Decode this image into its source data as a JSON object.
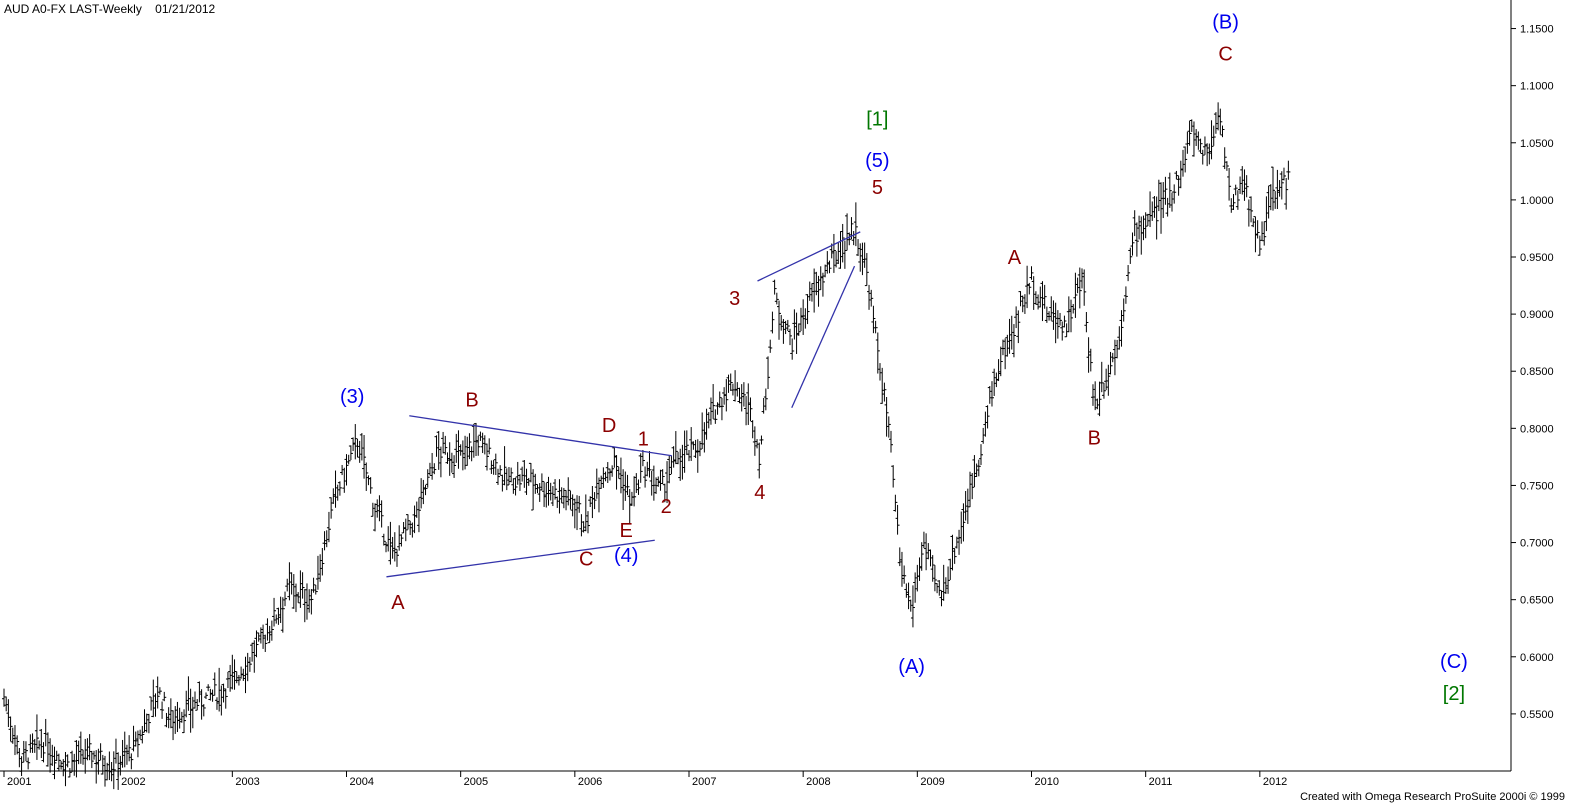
{
  "header": {
    "symbol": "AUD A0-FX LAST-Weekly",
    "date": "01/21/2012"
  },
  "footer": {
    "credit": "Created with Omega Research ProSuite 2000i © 1999"
  },
  "colors": {
    "bars": "#000000",
    "trendlines": "#3333aa",
    "wave_blue": "#0000ee",
    "wave_red": "#8b0000",
    "wave_green": "#007700",
    "axis": "#000000"
  },
  "chart_data": {
    "type": "ohlc",
    "title": "",
    "xlabel": "",
    "ylabel": "",
    "ylim": [
      0.5,
      1.175
    ],
    "xlim": [
      2001.0,
      2014.2
    ],
    "y_ticks": [
      "1.1500",
      "1.1000",
      "1.0500",
      "1.0000",
      "0.9500",
      "0.9000",
      "0.8500",
      "0.8000",
      "0.7500",
      "0.7000",
      "0.6500",
      "0.6000",
      "0.5500"
    ],
    "x_ticks": [
      "2001",
      "2002",
      "2003",
      "2004",
      "2005",
      "2006",
      "2007",
      "2008",
      "2009",
      "2010",
      "2011",
      "2012"
    ],
    "price_path": [
      [
        2001.0,
        0.565
      ],
      [
        2001.15,
        0.51
      ],
      [
        2001.35,
        0.525
      ],
      [
        2001.55,
        0.505
      ],
      [
        2001.75,
        0.515
      ],
      [
        2001.95,
        0.505
      ],
      [
        2002.15,
        0.52
      ],
      [
        2002.35,
        0.57
      ],
      [
        2002.45,
        0.545
      ],
      [
        2002.7,
        0.56
      ],
      [
        2002.9,
        0.57
      ],
      [
        2003.1,
        0.59
      ],
      [
        2003.3,
        0.62
      ],
      [
        2003.5,
        0.66
      ],
      [
        2003.7,
        0.65
      ],
      [
        2003.9,
        0.74
      ],
      [
        2004.1,
        0.79
      ],
      [
        2004.25,
        0.73
      ],
      [
        2004.4,
        0.69
      ],
      [
        2004.6,
        0.72
      ],
      [
        2004.8,
        0.78
      ],
      [
        2005.0,
        0.775
      ],
      [
        2005.15,
        0.79
      ],
      [
        2005.4,
        0.755
      ],
      [
        2005.6,
        0.755
      ],
      [
        2005.8,
        0.745
      ],
      [
        2006.0,
        0.735
      ],
      [
        2006.1,
        0.715
      ],
      [
        2006.2,
        0.755
      ],
      [
        2006.35,
        0.77
      ],
      [
        2006.5,
        0.735
      ],
      [
        2006.6,
        0.765
      ],
      [
        2006.75,
        0.745
      ],
      [
        2006.9,
        0.775
      ],
      [
        2007.05,
        0.78
      ],
      [
        2007.3,
        0.83
      ],
      [
        2007.4,
        0.84
      ],
      [
        2007.55,
        0.81
      ],
      [
        2007.62,
        0.775
      ],
      [
        2007.75,
        0.915
      ],
      [
        2007.9,
        0.875
      ],
      [
        2008.1,
        0.92
      ],
      [
        2008.3,
        0.955
      ],
      [
        2008.45,
        0.975
      ],
      [
        2008.55,
        0.94
      ],
      [
        2008.75,
        0.8
      ],
      [
        2008.85,
        0.68
      ],
      [
        2008.95,
        0.64
      ],
      [
        2009.05,
        0.7
      ],
      [
        2009.2,
        0.65
      ],
      [
        2009.4,
        0.72
      ],
      [
        2009.55,
        0.78
      ],
      [
        2009.7,
        0.85
      ],
      [
        2009.85,
        0.89
      ],
      [
        2010.0,
        0.93
      ],
      [
        2010.15,
        0.9
      ],
      [
        2010.3,
        0.89
      ],
      [
        2010.45,
        0.93
      ],
      [
        2010.55,
        0.82
      ],
      [
        2010.75,
        0.87
      ],
      [
        2010.9,
        0.97
      ],
      [
        2011.1,
        0.99
      ],
      [
        2011.3,
        1.02
      ],
      [
        2011.4,
        1.06
      ],
      [
        2011.55,
        1.04
      ],
      [
        2011.65,
        1.08
      ],
      [
        2011.75,
        0.99
      ],
      [
        2011.85,
        1.02
      ],
      [
        2012.0,
        0.96
      ],
      [
        2012.1,
        1.0
      ],
      [
        2012.25,
        1.02
      ]
    ],
    "annotations": [
      {
        "text": "(3)",
        "x": 2004.05,
        "y": 0.822,
        "color": "blue"
      },
      {
        "text": "B",
        "x": 2005.1,
        "y": 0.819,
        "color": "red"
      },
      {
        "text": "D",
        "x": 2006.3,
        "y": 0.797,
        "color": "red"
      },
      {
        "text": "1",
        "x": 2006.6,
        "y": 0.785,
        "color": "red"
      },
      {
        "text": "2",
        "x": 2006.8,
        "y": 0.726,
        "color": "red"
      },
      {
        "text": "E",
        "x": 2006.45,
        "y": 0.705,
        "color": "red"
      },
      {
        "text": "C",
        "x": 2006.1,
        "y": 0.68,
        "color": "red"
      },
      {
        "text": "(4)",
        "x": 2006.45,
        "y": 0.683,
        "color": "blue"
      },
      {
        "text": "A",
        "x": 2004.45,
        "y": 0.642,
        "color": "red"
      },
      {
        "text": "3",
        "x": 2007.4,
        "y": 0.908,
        "color": "red"
      },
      {
        "text": "4",
        "x": 2007.62,
        "y": 0.738,
        "color": "red"
      },
      {
        "text": "[1]",
        "x": 2008.65,
        "y": 1.065,
        "color": "green"
      },
      {
        "text": "(5)",
        "x": 2008.65,
        "y": 1.029,
        "color": "blue"
      },
      {
        "text": "5",
        "x": 2008.65,
        "y": 1.005,
        "color": "red"
      },
      {
        "text": "(A)",
        "x": 2008.95,
        "y": 0.586,
        "color": "blue"
      },
      {
        "text": "A",
        "x": 2009.85,
        "y": 0.944,
        "color": "red"
      },
      {
        "text": "B",
        "x": 2010.55,
        "y": 0.786,
        "color": "red"
      },
      {
        "text": "(B)",
        "x": 2011.7,
        "y": 1.15,
        "color": "blue"
      },
      {
        "text": "C",
        "x": 2011.7,
        "y": 1.122,
        "color": "red"
      },
      {
        "text": "(C)",
        "x": 2013.7,
        "y": 0.59,
        "color": "blue"
      },
      {
        "text": "[2]",
        "x": 2013.7,
        "y": 0.562,
        "color": "green"
      }
    ],
    "trendlines": [
      {
        "x1": 2004.55,
        "y1": 0.811,
        "x2": 2006.85,
        "y2": 0.776
      },
      {
        "x1": 2004.35,
        "y1": 0.67,
        "x2": 2006.7,
        "y2": 0.702
      },
      {
        "x1": 2007.6,
        "y1": 0.929,
        "x2": 2008.5,
        "y2": 0.972
      },
      {
        "x1": 2007.9,
        "y1": 0.818,
        "x2": 2008.45,
        "y2": 0.942
      }
    ]
  }
}
